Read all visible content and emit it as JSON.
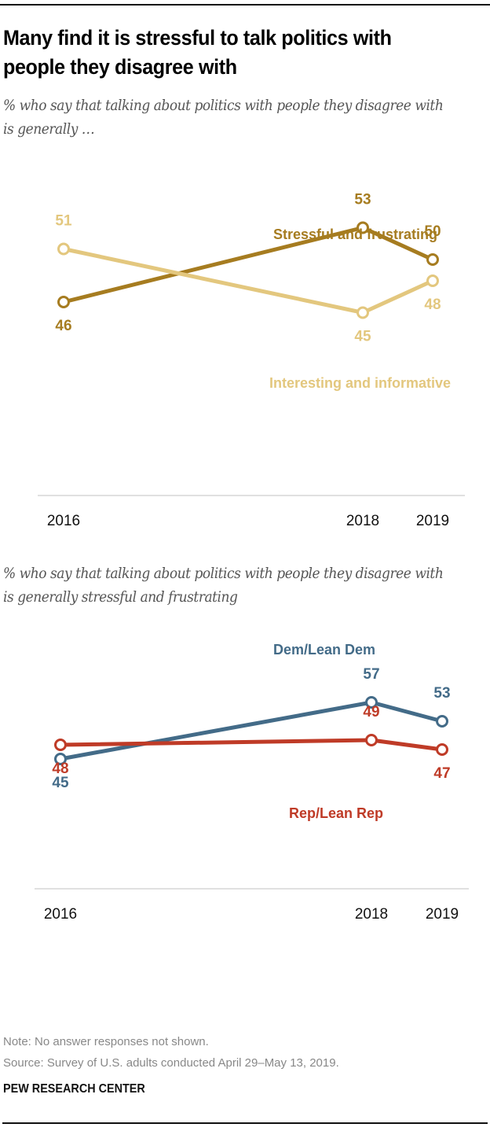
{
  "title": "Many find it is stressful to talk politics with people they disagree with",
  "footer": {
    "note": "Note: No answer responses not shown.",
    "source": "Source: Survey of U.S. adults conducted April 29–May 13, 2019.",
    "brand": "PEW RESEARCH CENTER"
  },
  "chart_data": [
    {
      "type": "line",
      "title": "% who say that talking about politics with people they disagree with is generally …",
      "x": [
        "2016",
        "2018",
        "2019"
      ],
      "x_numeric": [
        2016.2,
        2018.4,
        2019.2
      ],
      "ylim": [
        40,
        60
      ],
      "grid": false,
      "series": [
        {
          "name": "Stressful and frustrating",
          "values": [
            46,
            53,
            50
          ],
          "color": "#A67C20"
        },
        {
          "name": "Interesting and informative",
          "values": [
            51,
            45,
            48
          ],
          "color": "#E3C77E"
        }
      ]
    },
    {
      "type": "line",
      "title": "% who say that talking about politics with people they disagree with is generally stressful and frustrating",
      "x": [
        "2016",
        "2018",
        "2019"
      ],
      "x_numeric": [
        2016.2,
        2018.4,
        2019.2
      ],
      "ylim": [
        40,
        62
      ],
      "grid": false,
      "series": [
        {
          "name": "Dem/Lean Dem",
          "values": [
            45,
            57,
            53
          ],
          "color": "#436B88"
        },
        {
          "name": "Rep/Lean Rep",
          "values": [
            48,
            49,
            47
          ],
          "color": "#BF3B27"
        }
      ]
    }
  ]
}
